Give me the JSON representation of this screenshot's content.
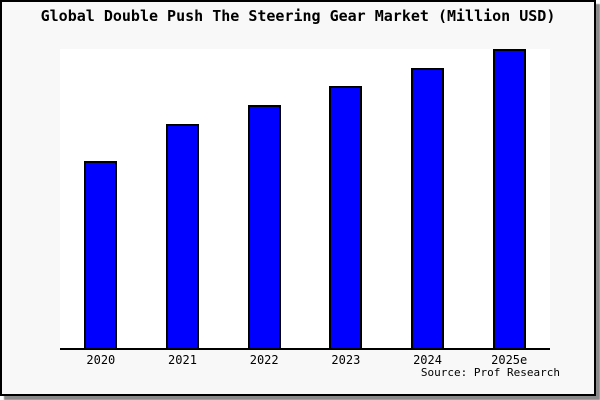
{
  "title": "Global Double Push The Steering Gear Market (Million USD)",
  "source": "Source: Prof Research",
  "colors": {
    "bar": "#0000ff",
    "bar_border": "#000000",
    "figure_background": "#f8f8f8",
    "plot_background": "#ffffff",
    "figure_border": "#000000",
    "axis": "#000000",
    "shadow": "#8a8a8a",
    "text": "#000000"
  },
  "chart_data": {
    "type": "bar",
    "title": "Global Double Push The Steering Gear Market (Million USD)",
    "categories": [
      "2020",
      "2021",
      "2022",
      "2023",
      "2024",
      "2025e"
    ],
    "values": [
      62.7,
      75.0,
      81.3,
      87.7,
      93.7,
      100.0
    ],
    "xlabel": "",
    "ylabel": "",
    "ylim": [
      0,
      100
    ],
    "y_axis_labels_visible": false,
    "gridlines": false,
    "legend": false,
    "note": "No y-axis scale or value labels are shown in the image; values are relative bar heights normalized so 2025e = 100.",
    "annotations": [
      "Source: Prof Research"
    ]
  }
}
